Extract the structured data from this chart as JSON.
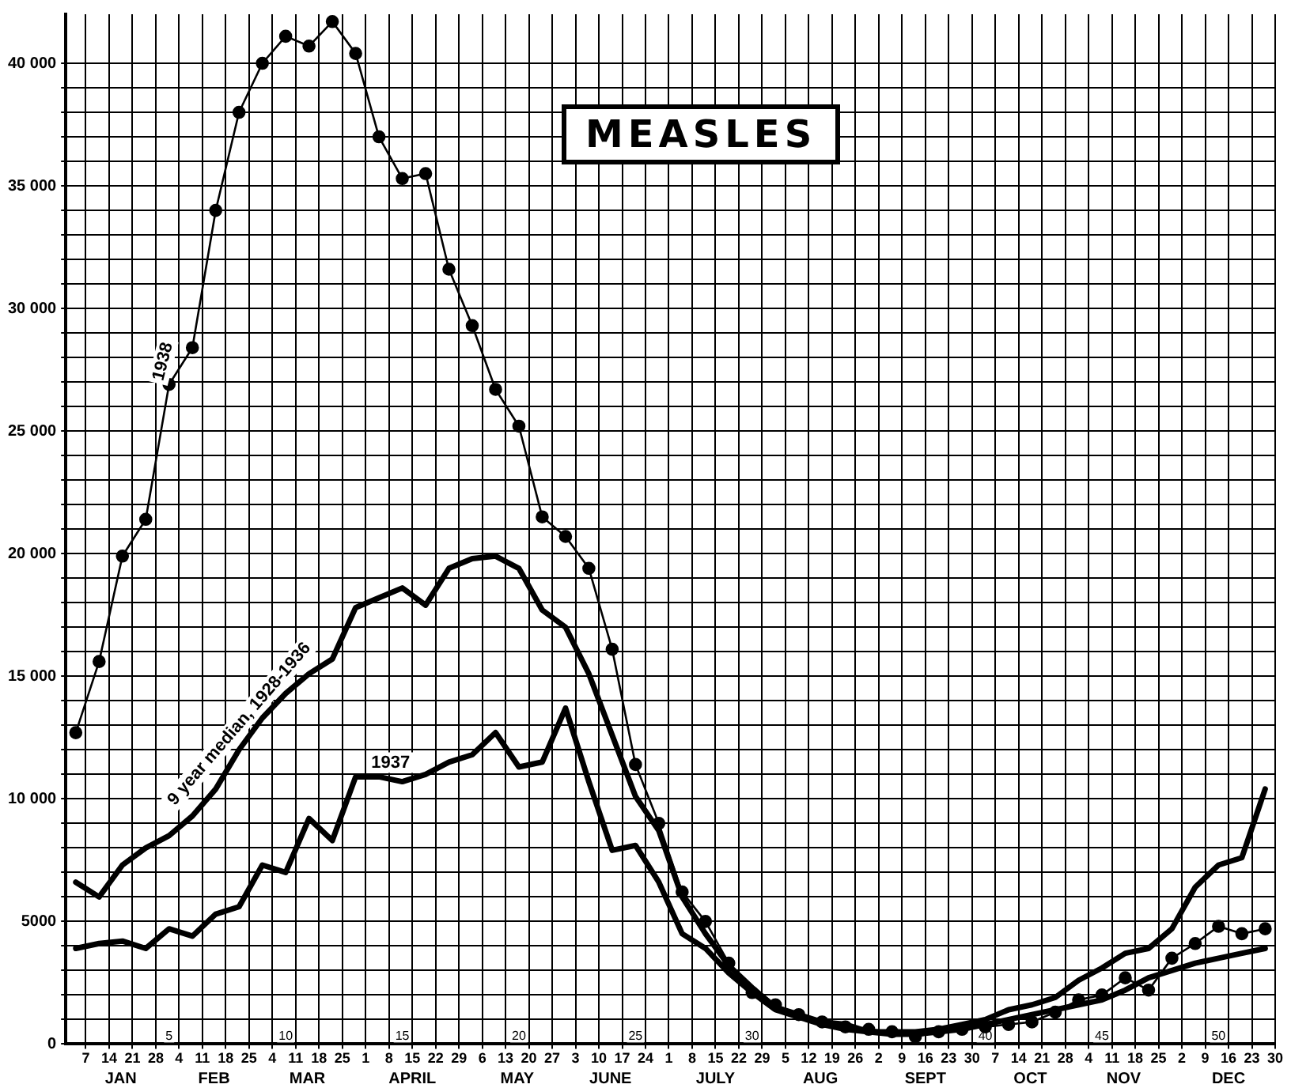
{
  "chart_data": {
    "type": "line",
    "title": "MEASLES",
    "x": [
      "--01-04",
      "--01-11",
      "--01-18",
      "--01-25",
      "--02-01",
      "--02-08",
      "--02-15",
      "--02-22",
      "--03-01",
      "--03-08",
      "--03-15",
      "--03-22",
      "--03-29",
      "--04-05",
      "--04-12",
      "--04-19",
      "--04-26",
      "--05-03",
      "--05-10",
      "--05-17",
      "--05-24",
      "--05-31",
      "--06-07",
      "--06-14",
      "--06-21",
      "--06-28",
      "--07-05",
      "--07-12",
      "--07-19",
      "--07-26",
      "--08-02",
      "--08-09",
      "--08-16",
      "--08-23",
      "--08-30",
      "--09-06",
      "--09-13",
      "--09-20",
      "--09-27",
      "--10-04",
      "--10-11",
      "--10-18",
      "--10-25",
      "--11-01",
      "--11-08",
      "--11-15",
      "--11-22",
      "--11-29",
      "--12-06",
      "--12-13",
      "--12-20",
      "--12-27"
    ],
    "series": [
      {
        "name": "1938",
        "color": "#000000",
        "marker": "circle",
        "values": [
          12700,
          15600,
          19900,
          21400,
          26900,
          28400,
          34000,
          38000,
          40000,
          41100,
          40700,
          41700,
          40400,
          37000,
          35300,
          35500,
          31600,
          29300,
          26700,
          25200,
          21500,
          20700,
          19400,
          16100,
          11400,
          9000,
          6200,
          5000,
          3300,
          2100,
          1600,
          1200,
          900,
          700,
          600,
          500,
          300,
          500,
          600,
          700,
          800,
          900,
          1300,
          1800,
          2000,
          2700,
          2200,
          3500,
          4100,
          4800,
          4500,
          4700
        ]
      },
      {
        "name": "1937",
        "color": "#000000",
        "marker": "none",
        "values": [
          3900,
          4100,
          4200,
          3900,
          4700,
          4400,
          5300,
          5600,
          7300,
          7000,
          9200,
          8300,
          10900,
          10900,
          10700,
          11000,
          11500,
          11800,
          12700,
          11300,
          11500,
          13700,
          10700,
          7900,
          8100,
          6600,
          4500,
          3900,
          2900,
          2100,
          1400,
          1100,
          800,
          600,
          500,
          500,
          500,
          600,
          800,
          1000,
          1400,
          1600,
          1900,
          2600,
          3100,
          3700,
          3900,
          4700,
          6400,
          7300,
          7600,
          10400
        ]
      },
      {
        "name": "9 year median, 1928-1936",
        "color": "#000000",
        "marker": "none",
        "values": [
          6600,
          6000,
          7300,
          8000,
          8500,
          9300,
          10400,
          12000,
          13300,
          14300,
          15100,
          15700,
          17800,
          18200,
          18600,
          17900,
          19400,
          19800,
          19900,
          19400,
          17700,
          17000,
          15100,
          12600,
          10100,
          8700,
          6000,
          4500,
          3200,
          2300,
          1500,
          1200,
          900,
          800,
          500,
          400,
          400,
          500,
          600,
          800,
          1000,
          1200,
          1400,
          1600,
          1800,
          2200,
          2700,
          3000,
          3300,
          3500,
          3700,
          3900
        ]
      }
    ],
    "xlim": [
      "--01-01",
      "--12-30"
    ],
    "xticks": [
      {
        "value": "--01-07",
        "label": "7"
      },
      {
        "value": "--01-14",
        "label": "14"
      },
      {
        "value": "--01-21",
        "label": "21"
      },
      {
        "value": "--01-28",
        "label": "28"
      },
      {
        "value": "--02-04",
        "label": "4"
      },
      {
        "value": "--02-11",
        "label": "11"
      },
      {
        "value": "--02-18",
        "label": "18"
      },
      {
        "value": "--02-25",
        "label": "25"
      },
      {
        "value": "--03-04",
        "label": "4"
      },
      {
        "value": "--03-11",
        "label": "11"
      },
      {
        "value": "--03-18",
        "label": "18"
      },
      {
        "value": "--03-25",
        "label": "25"
      },
      {
        "value": "--04-01",
        "label": "1"
      },
      {
        "value": "--04-08",
        "label": "8"
      },
      {
        "value": "--04-15",
        "label": "15"
      },
      {
        "value": "--04-22",
        "label": "22"
      },
      {
        "value": "--04-29",
        "label": "29"
      },
      {
        "value": "--05-06",
        "label": "6"
      },
      {
        "value": "--05-13",
        "label": "13"
      },
      {
        "value": "--05-20",
        "label": "20"
      },
      {
        "value": "--05-27",
        "label": "27"
      },
      {
        "value": "--06-03",
        "label": "3"
      },
      {
        "value": "--06-10",
        "label": "10"
      },
      {
        "value": "--06-17",
        "label": "17"
      },
      {
        "value": "--06-24",
        "label": "24"
      },
      {
        "value": "--07-01",
        "label": "1"
      },
      {
        "value": "--07-08",
        "label": "8"
      },
      {
        "value": "--07-15",
        "label": "15"
      },
      {
        "value": "--07-22",
        "label": "22"
      },
      {
        "value": "--07-29",
        "label": "29"
      },
      {
        "value": "--08-05",
        "label": "5"
      },
      {
        "value": "--08-12",
        "label": "12"
      },
      {
        "value": "--08-19",
        "label": "19"
      },
      {
        "value": "--08-26",
        "label": "26"
      },
      {
        "value": "--09-02",
        "label": "2"
      },
      {
        "value": "--09-09",
        "label": "9"
      },
      {
        "value": "--09-16",
        "label": "16"
      },
      {
        "value": "--09-23",
        "label": "23"
      },
      {
        "value": "--09-30",
        "label": "30"
      },
      {
        "value": "--10-07",
        "label": "7"
      },
      {
        "value": "--10-14",
        "label": "14"
      },
      {
        "value": "--10-21",
        "label": "21"
      },
      {
        "value": "--10-28",
        "label": "28"
      },
      {
        "value": "--11-04",
        "label": "4"
      },
      {
        "value": "--11-11",
        "label": "11"
      },
      {
        "value": "--11-18",
        "label": "18"
      },
      {
        "value": "--11-25",
        "label": "25"
      },
      {
        "value": "--12-02",
        "label": "2"
      },
      {
        "value": "--12-09",
        "label": "9"
      },
      {
        "value": "--12-16",
        "label": "16"
      },
      {
        "value": "--12-23",
        "label": "23"
      },
      {
        "value": "--12-30",
        "label": "30"
      }
    ],
    "x2lim": [
      0.57,
      52.43
    ],
    "x2ticks": [
      5,
      10,
      15,
      20,
      25,
      30,
      40,
      45,
      50
    ],
    "ylim": [
      0,
      42000
    ],
    "yticks": [
      0,
      {
        "value": 1000,
        "label": null
      },
      {
        "value": 2000,
        "label": null
      },
      {
        "value": 3000,
        "label": null
      },
      {
        "value": 4000,
        "label": null
      },
      5000,
      {
        "value": 6000,
        "label": null
      },
      {
        "value": 7000,
        "label": null
      },
      {
        "value": 8000,
        "label": null
      },
      {
        "value": 9000,
        "label": null
      },
      {
        "value": 10000,
        "label": "10 000"
      },
      {
        "value": 11000,
        "label": null
      },
      {
        "value": 12000,
        "label": null
      },
      {
        "value": 13000,
        "label": null
      },
      {
        "value": 14000,
        "label": null
      },
      {
        "value": 15000,
        "label": "15 000"
      },
      {
        "value": 16000,
        "label": null
      },
      {
        "value": 17000,
        "label": null
      },
      {
        "value": 18000,
        "label": null
      },
      {
        "value": 19000,
        "label": null
      },
      {
        "value": 20000,
        "label": "20 000"
      },
      {
        "value": 21000,
        "label": null
      },
      {
        "value": 22000,
        "label": null
      },
      {
        "value": 23000,
        "label": null
      },
      {
        "value": 24000,
        "label": null
      },
      {
        "value": 25000,
        "label": "25 000"
      },
      {
        "value": 26000,
        "label": null
      },
      {
        "value": 27000,
        "label": null
      },
      {
        "value": 28000,
        "label": null
      },
      {
        "value": 29000,
        "label": null
      },
      {
        "value": 30000,
        "label": "30 000"
      },
      {
        "value": 31000,
        "label": null
      },
      {
        "value": 32000,
        "label": null
      },
      {
        "value": 33000,
        "label": null
      },
      {
        "value": 34000,
        "label": null
      },
      {
        "value": 35000,
        "label": "35 000"
      },
      {
        "value": 36000,
        "label": null
      },
      {
        "value": 37000,
        "label": null
      },
      {
        "value": 38000,
        "label": null
      },
      {
        "value": 39000,
        "label": null
      },
      {
        "value": 40000,
        "label": "40 000"
      }
    ],
    "grid": true,
    "legend": false,
    "annotations": [
      "JAN",
      "FEB",
      "MAR",
      "APRIL",
      "MAY",
      "JUNE",
      "JULY",
      "AUG",
      "SEPT",
      "OCT",
      "NOV",
      "DEC"
    ]
  }
}
